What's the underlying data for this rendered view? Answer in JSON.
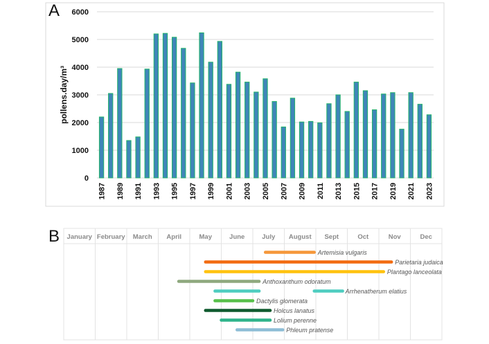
{
  "panels": {
    "a_label": "A",
    "b_label": "B"
  },
  "chart_data": [
    {
      "type": "bar",
      "title": "",
      "xlabel": "",
      "ylabel": "pollens.day/m³",
      "ylim": [
        0,
        6000
      ],
      "yticks": [
        0,
        1000,
        2000,
        3000,
        4000,
        5000,
        6000
      ],
      "grid": true,
      "bar_fill": "#3f86b8",
      "bar_stroke": "#22b36a",
      "categories": [
        "1987",
        "1988",
        "1989",
        "1990",
        "1991",
        "1992",
        "1993",
        "1994",
        "1995",
        "1996",
        "1997",
        "1998",
        "1999",
        "2000",
        "2001",
        "2002",
        "2003",
        "2004",
        "2005",
        "2006",
        "2007",
        "2008",
        "2009",
        "2010",
        "2011",
        "2012",
        "2013",
        "2014",
        "2015",
        "2016",
        "2017",
        "2018",
        "2019",
        "2020",
        "2021",
        "2022",
        "2023"
      ],
      "tick_labels_shown": [
        "1987",
        "1989",
        "1991",
        "1993",
        "1995",
        "1997",
        "1999",
        "2001",
        "2003",
        "2005",
        "2007",
        "2009",
        "2011",
        "2013",
        "2015",
        "2017",
        "2019",
        "2021",
        "2023"
      ],
      "values": [
        2200,
        3050,
        3950,
        1350,
        1480,
        3930,
        5200,
        5220,
        5080,
        4680,
        3430,
        5240,
        4180,
        4930,
        3380,
        3820,
        3460,
        3100,
        3580,
        2760,
        1840,
        2880,
        2020,
        2040,
        1990,
        2680,
        3000,
        2400,
        3460,
        3150,
        2460,
        3030,
        3080,
        1760,
        3080,
        2660,
        2280
      ]
    },
    {
      "type": "gantt",
      "months": [
        "January",
        "February",
        "March",
        "April",
        "May",
        "June",
        "July",
        "August",
        "Sept",
        "Oct",
        "Nov",
        "Dec"
      ],
      "series": [
        {
          "name": "Artemisia vulgaris",
          "start": 6.4,
          "end": 7.95,
          "color": "#f5973a"
        },
        {
          "name": "Parietaria judaica",
          "start": 4.5,
          "end": 10.4,
          "color": "#f26b10"
        },
        {
          "name": "Plantago lanceolata",
          "start": 4.5,
          "end": 10.15,
          "color": "#ffc20e"
        },
        {
          "name": "Anthoxanthum odoratum",
          "start": 3.65,
          "end": 6.2,
          "color": "#8ea87e"
        },
        {
          "name": "Arrhenatherum elatius",
          "start": 4.8,
          "end": 6.2,
          "start2": 7.95,
          "end2": 8.85,
          "color": "#4ecdc0"
        },
        {
          "name": "Dactylis glomerata",
          "start": 4.8,
          "end": 6.0,
          "color": "#57c04a"
        },
        {
          "name": "Holcus lanatus",
          "start": 4.5,
          "end": 6.55,
          "color": "#0e5a2e"
        },
        {
          "name": "Lolium perenne",
          "start": 5.0,
          "end": 6.55,
          "color": "#2db38a"
        },
        {
          "name": "Phleum pratense",
          "start": 5.5,
          "end": 6.95,
          "color": "#8dbdd6"
        }
      ]
    }
  ]
}
